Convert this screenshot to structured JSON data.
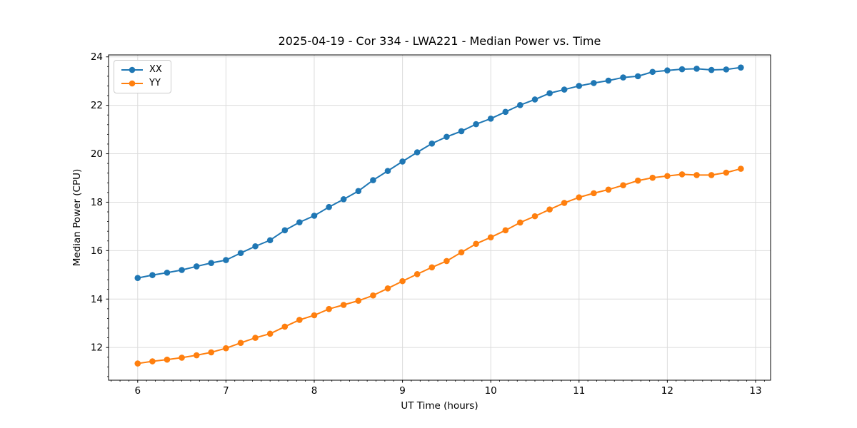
{
  "chart_data": {
    "type": "line",
    "title": "2025-04-19 - Cor 334 - LWA221 - Median Power vs. Time",
    "xlabel": "UT Time (hours)",
    "ylabel": "Median Power (CPU)",
    "xlim": [
      5.67,
      13.17
    ],
    "ylim": [
      10.65,
      24.08
    ],
    "x_ticks": [
      6,
      7,
      8,
      9,
      10,
      11,
      12,
      13
    ],
    "y_ticks": [
      12,
      14,
      16,
      18,
      20,
      22,
      24
    ],
    "x_minor_step": 0.1,
    "y_minor_step": 0.4,
    "grid": "major-only",
    "grid_color": "#dcdcdc",
    "spine_color": "#000000",
    "legend_position": "upper-left",
    "x": [
      6.0,
      6.167,
      6.333,
      6.5,
      6.667,
      6.833,
      7.0,
      7.167,
      7.333,
      7.5,
      7.667,
      7.833,
      8.0,
      8.167,
      8.333,
      8.5,
      8.667,
      8.833,
      9.0,
      9.167,
      9.333,
      9.5,
      9.667,
      9.833,
      10.0,
      10.167,
      10.333,
      10.5,
      10.667,
      10.833,
      11.0,
      11.167,
      11.333,
      11.5,
      11.667,
      11.833,
      12.0,
      12.167,
      12.333,
      12.5,
      12.667,
      12.833
    ],
    "series": [
      {
        "name": "XX",
        "color": "#1f77b4",
        "values": [
          14.87,
          14.99,
          15.09,
          15.2,
          15.35,
          15.49,
          15.61,
          15.9,
          16.18,
          16.43,
          16.84,
          17.17,
          17.44,
          17.8,
          18.12,
          18.46,
          18.91,
          19.29,
          19.68,
          20.06,
          20.42,
          20.7,
          20.93,
          21.22,
          21.45,
          21.73,
          22.01,
          22.24,
          22.5,
          22.65,
          22.8,
          22.92,
          23.02,
          23.15,
          23.2,
          23.38,
          23.44,
          23.49,
          23.51,
          23.46,
          23.48,
          23.56
        ]
      },
      {
        "name": "YY",
        "color": "#ff7f0e",
        "values": [
          11.34,
          11.43,
          11.5,
          11.58,
          11.68,
          11.8,
          11.97,
          12.19,
          12.4,
          12.57,
          12.86,
          13.14,
          13.33,
          13.59,
          13.76,
          13.93,
          14.15,
          14.44,
          14.74,
          15.03,
          15.31,
          15.57,
          15.93,
          16.28,
          16.55,
          16.84,
          17.16,
          17.42,
          17.7,
          17.97,
          18.2,
          18.37,
          18.52,
          18.7,
          18.89,
          19.01,
          19.08,
          19.15,
          19.12,
          19.12,
          19.22,
          19.38
        ]
      }
    ]
  }
}
